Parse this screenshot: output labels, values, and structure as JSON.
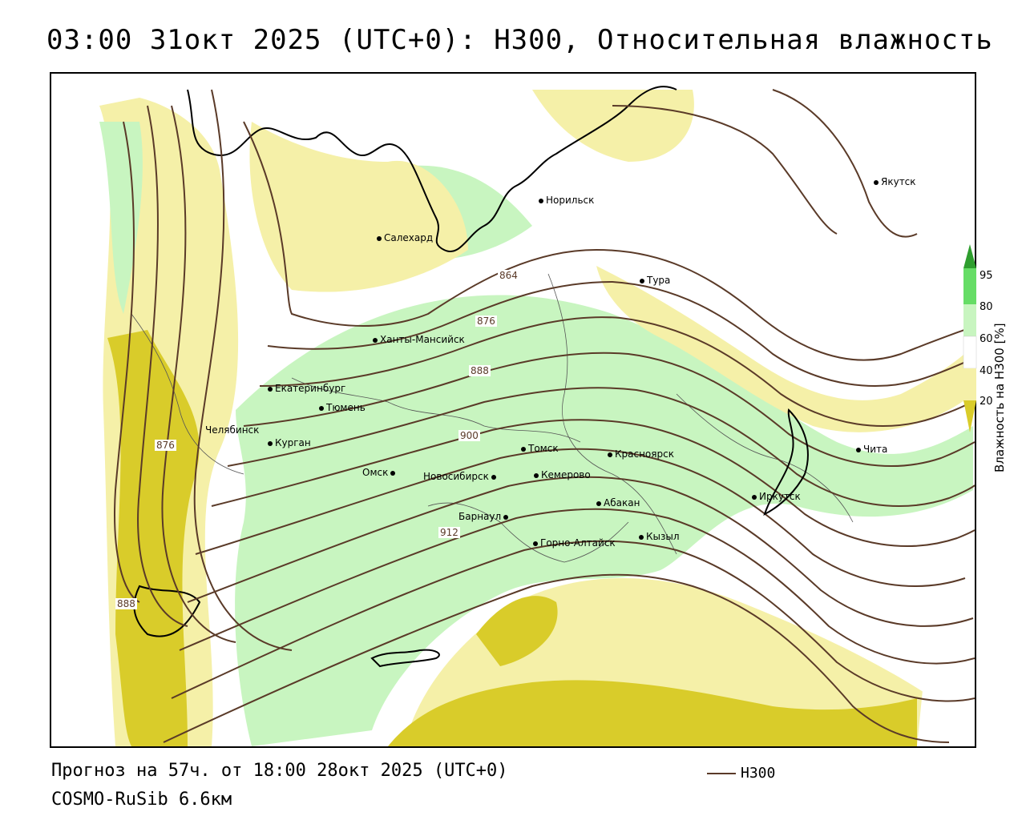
{
  "title": "03:00 31окт 2025 (UTC+0): H300, Относительная влажность",
  "footer": {
    "forecast": "Прогноз на 57ч. от 18:00 28окт 2025 (UTC+0)",
    "model": "COSMO-RuSib 6.6км",
    "legend_line_label": "H300"
  },
  "colorbar": {
    "title": "Влажность на H300 [%]",
    "ticks": [
      "95",
      "80",
      "60",
      "40",
      "20"
    ],
    "colors": {
      "95": "#2e9e2e",
      "80": "#66dd66",
      "60": "#c8f5c0",
      "40": "#ffffff",
      "20": "#f5f0a8",
      "low": "#d9cc2a"
    }
  },
  "cities": [
    {
      "name": "Якутск"
    },
    {
      "name": "Норильск"
    },
    {
      "name": "Салехард"
    },
    {
      "name": "Тура"
    },
    {
      "name": "Ханты-Мансийск"
    },
    {
      "name": "Екатеринбург"
    },
    {
      "name": "Тюмень"
    },
    {
      "name": "Челябинск"
    },
    {
      "name": "Курган"
    },
    {
      "name": "Омск"
    },
    {
      "name": "Новосибирск"
    },
    {
      "name": "Томск"
    },
    {
      "name": "Кемерово"
    },
    {
      "name": "Красноярск"
    },
    {
      "name": "Абакан"
    },
    {
      "name": "Барнаул"
    },
    {
      "name": "Горно-Алтайск"
    },
    {
      "name": "Кызыл"
    },
    {
      "name": "Иркутск"
    },
    {
      "name": "Чита"
    }
  ],
  "contour_labels": [
    "864",
    "876",
    "888",
    "900",
    "912",
    "876",
    "888"
  ],
  "colors": {
    "contour": "#5a3a28",
    "border": "#000000"
  }
}
